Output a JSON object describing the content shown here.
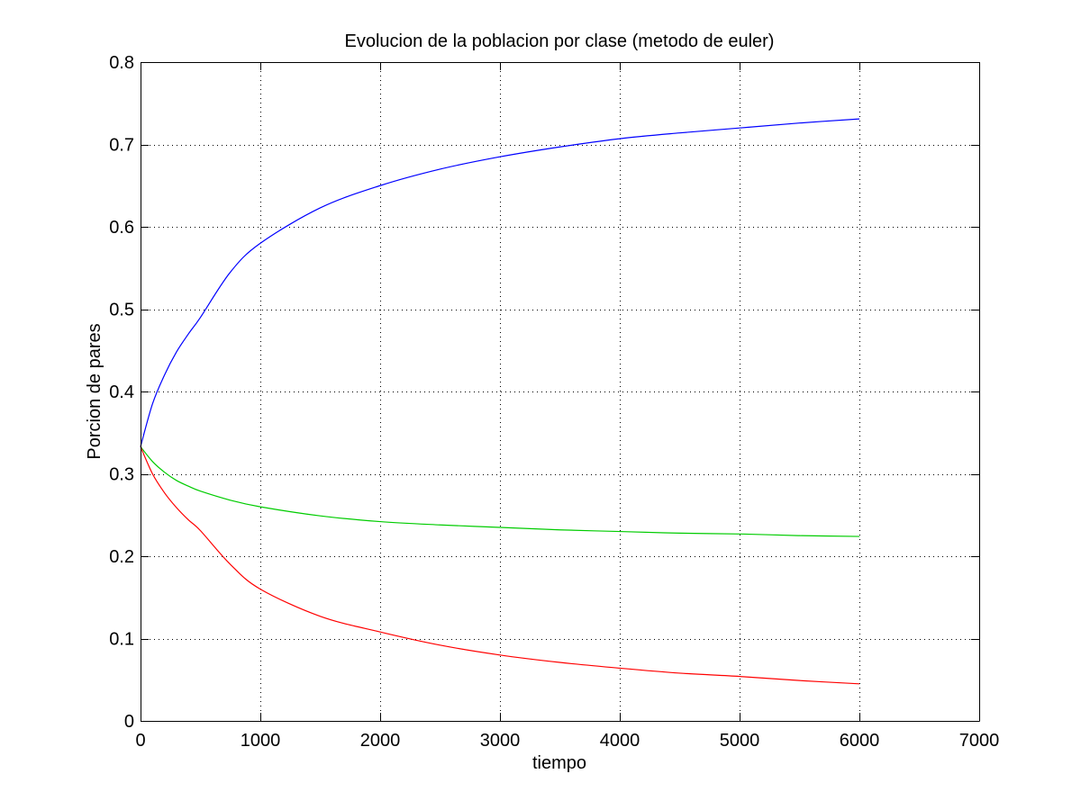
{
  "chart_data": {
    "type": "line",
    "title": "Evolucion de la poblacion por clase (metodo de euler)",
    "xlabel": "tiempo",
    "ylabel": "Porcion de pares",
    "xlim": [
      0,
      7000
    ],
    "ylim": [
      0,
      0.8
    ],
    "xticks": [
      0,
      1000,
      2000,
      3000,
      4000,
      5000,
      6000,
      7000
    ],
    "yticks": [
      0,
      0.1,
      0.2,
      0.3,
      0.4,
      0.5,
      0.6,
      0.7,
      0.8
    ],
    "xtick_labels": [
      "0",
      "1000",
      "2000",
      "3000",
      "4000",
      "5000",
      "6000",
      "7000"
    ],
    "ytick_labels": [
      "0",
      "0.1",
      "0.2",
      "0.3",
      "0.4",
      "0.5",
      "0.6",
      "0.7",
      "0.8"
    ],
    "grid": true,
    "box": true,
    "x": [
      0,
      100,
      200,
      300,
      400,
      500,
      750,
      1000,
      1500,
      2000,
      2500,
      3000,
      3500,
      4000,
      4500,
      5000,
      5500,
      6000
    ],
    "series": [
      {
        "color": "#0000ff",
        "values": [
          0.333,
          0.385,
          0.42,
          0.448,
          0.47,
          0.49,
          0.545,
          0.58,
          0.623,
          0.65,
          0.67,
          0.685,
          0.697,
          0.707,
          0.714,
          0.72,
          0.726,
          0.731
        ]
      },
      {
        "color": "#00cc00",
        "values": [
          0.333,
          0.315,
          0.302,
          0.292,
          0.285,
          0.279,
          0.268,
          0.26,
          0.249,
          0.242,
          0.238,
          0.235,
          0.232,
          0.23,
          0.228,
          0.227,
          0.225,
          0.224
        ]
      },
      {
        "color": "#ff0000",
        "values": [
          0.333,
          0.3,
          0.277,
          0.259,
          0.244,
          0.231,
          0.19,
          0.16,
          0.127,
          0.108,
          0.092,
          0.08,
          0.071,
          0.064,
          0.058,
          0.054,
          0.049,
          0.045
        ]
      }
    ]
  }
}
